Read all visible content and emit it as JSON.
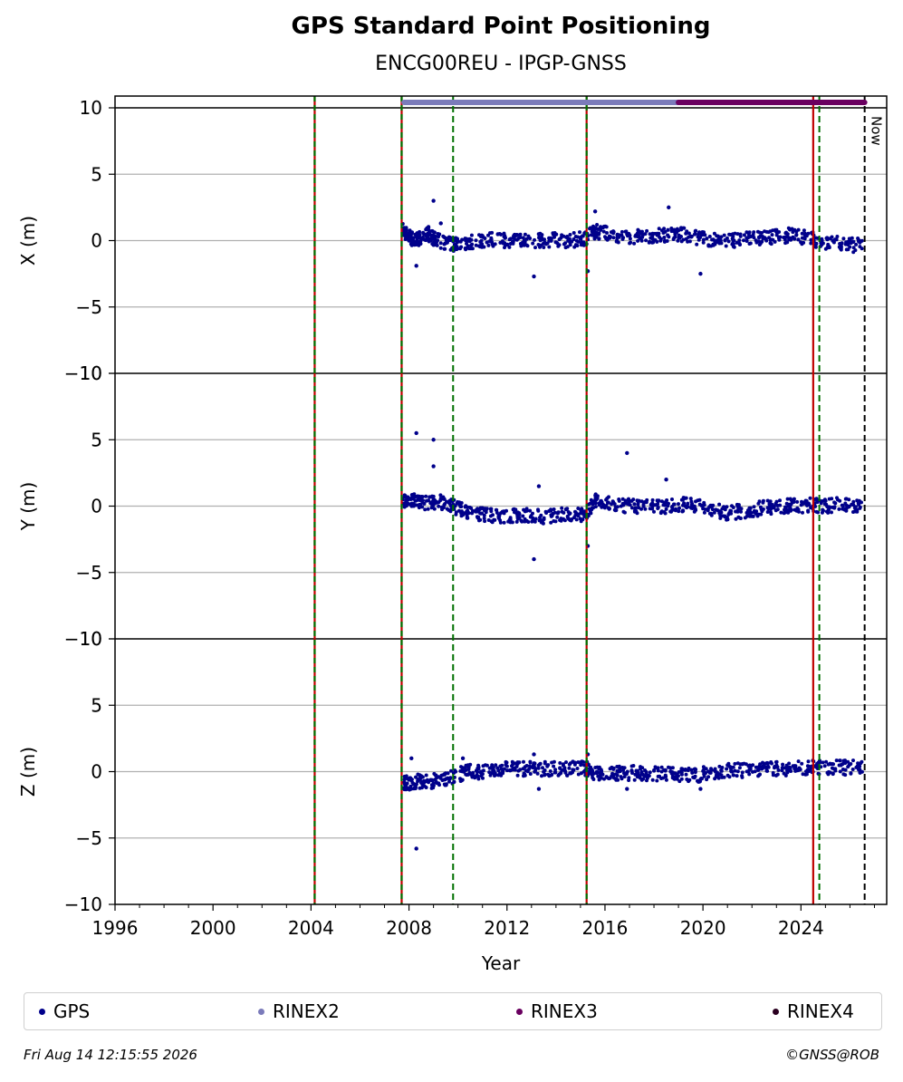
{
  "chart_data": {
    "type": "scatter",
    "title": "GPS Standard Point Positioning",
    "subtitle": "ENCG00REU - IPGP-GNSS",
    "xlabel": "Year",
    "xlim": [
      1996,
      2027.5
    ],
    "xticks": [
      1996,
      2000,
      2004,
      2008,
      2012,
      2016,
      2020,
      2024
    ],
    "grid": true,
    "panels": [
      {
        "ylabel": "X (m)",
        "ylim": [
          -10,
          10
        ],
        "yticks": [
          -10,
          -5,
          0,
          5,
          10
        ],
        "tick_labels": [
          "−10",
          "−5",
          "0",
          "5",
          "10"
        ],
        "series": [
          {
            "name": "GPS",
            "x": [
              2007.75,
              2007.9,
              2008.1,
              2008.3,
              2008.5,
              2008.8,
              2009.0,
              2009.3,
              2009.7,
              2010.0,
              2010.5,
              2011.0,
              2011.5,
              2012.0,
              2012.5,
              2013.0,
              2013.5,
              2014.0,
              2014.5,
              2015.0,
              2015.3,
              2015.6,
              2016.0,
              2016.5,
              2017.0,
              2017.5,
              2018.0,
              2018.5,
              2019.0,
              2019.5,
              2020.0,
              2020.5,
              2021.0,
              2021.5,
              2022.0,
              2022.5,
              2023.0,
              2023.5,
              2024.0,
              2024.5,
              2025.0,
              2025.5,
              2026.0,
              2026.5
            ],
            "y": [
              0.8,
              0.5,
              0.2,
              0.0,
              0.3,
              0.5,
              0.2,
              -0.1,
              -0.3,
              -0.2,
              -0.1,
              0.0,
              0.1,
              0.0,
              0.1,
              0.0,
              0.0,
              0.1,
              0.0,
              0.1,
              0.3,
              0.7,
              0.6,
              0.4,
              0.3,
              0.3,
              0.4,
              0.4,
              0.5,
              0.3,
              0.2,
              0.0,
              0.0,
              0.1,
              0.1,
              0.3,
              0.3,
              0.4,
              0.3,
              0.1,
              -0.2,
              -0.2,
              -0.3,
              -0.4
            ],
            "outliers_x": [
              2008.3,
              2009.0,
              2009.3,
              2013.1,
              2015.3,
              2015.6,
              2018.6,
              2019.9
            ],
            "outliers_y": [
              -1.9,
              3.0,
              1.3,
              -2.7,
              -2.3,
              2.2,
              2.5,
              -2.5
            ]
          }
        ]
      },
      {
        "ylabel": "Y (m)",
        "ylim": [
          -10,
          10
        ],
        "yticks": [
          -10,
          -5,
          0,
          5,
          10
        ],
        "tick_labels": [
          "−10",
          "−5",
          "0",
          "5",
          "10"
        ],
        "series": [
          {
            "name": "GPS",
            "x": [
              2007.75,
              2008.0,
              2008.3,
              2008.6,
              2009.0,
              2009.4,
              2009.8,
              2010.2,
              2010.6,
              2011.0,
              2011.5,
              2012.0,
              2012.5,
              2013.0,
              2013.5,
              2014.0,
              2014.5,
              2015.0,
              2015.3,
              2015.6,
              2016.0,
              2016.5,
              2017.0,
              2017.5,
              2018.0,
              2018.5,
              2019.0,
              2019.5,
              2020.0,
              2020.5,
              2021.0,
              2021.5,
              2022.0,
              2022.5,
              2023.0,
              2023.5,
              2024.0,
              2024.5,
              2025.0,
              2025.5,
              2026.0,
              2026.5
            ],
            "y": [
              0.5,
              0.3,
              0.4,
              0.2,
              0.3,
              0.3,
              0.0,
              -0.3,
              -0.5,
              -0.6,
              -0.7,
              -0.8,
              -0.7,
              -0.7,
              -0.8,
              -0.7,
              -0.7,
              -0.6,
              -0.5,
              0.5,
              0.2,
              0.0,
              0.0,
              -0.1,
              0.0,
              0.0,
              0.1,
              0.1,
              0.0,
              -0.3,
              -0.5,
              -0.4,
              -0.3,
              -0.1,
              0.0,
              0.0,
              0.0,
              0.1,
              0.0,
              0.1,
              0.1,
              0.0
            ],
            "outliers_x": [
              2008.3,
              2009.0,
              2009.0,
              2013.1,
              2013.3,
              2015.3,
              2016.9,
              2018.5
            ],
            "outliers_y": [
              5.5,
              5.0,
              3.0,
              -4.0,
              1.5,
              -3.0,
              4.0,
              2.0
            ]
          }
        ]
      },
      {
        "ylabel": "Z (m)",
        "ylim": [
          -10,
          10
        ],
        "yticks": [
          -10,
          -5,
          0,
          5,
          10
        ],
        "tick_labels": [
          "−10",
          "−5",
          "0",
          "5",
          "10"
        ],
        "series": [
          {
            "name": "GPS",
            "x": [
              2007.75,
              2008.0,
              2008.3,
              2008.6,
              2009.0,
              2009.4,
              2009.8,
              2010.2,
              2010.6,
              2011.0,
              2011.5,
              2012.0,
              2012.5,
              2013.0,
              2013.5,
              2014.0,
              2014.5,
              2015.0,
              2015.3,
              2015.6,
              2016.0,
              2016.5,
              2017.0,
              2017.5,
              2018.0,
              2018.5,
              2019.0,
              2019.5,
              2020.0,
              2020.5,
              2021.0,
              2021.5,
              2022.0,
              2022.5,
              2023.0,
              2023.5,
              2024.0,
              2024.5,
              2025.0,
              2025.5,
              2026.0,
              2026.5
            ],
            "y": [
              -0.8,
              -0.9,
              -0.7,
              -0.8,
              -0.7,
              -0.5,
              -0.4,
              -0.1,
              0.0,
              0.0,
              0.1,
              0.2,
              0.2,
              0.2,
              0.2,
              0.2,
              0.2,
              0.3,
              0.2,
              -0.2,
              -0.1,
              -0.1,
              -0.1,
              -0.1,
              -0.2,
              -0.2,
              -0.3,
              -0.3,
              -0.2,
              0.0,
              0.1,
              0.1,
              0.1,
              0.2,
              0.2,
              0.2,
              0.3,
              0.3,
              0.3,
              0.3,
              0.3,
              0.3
            ],
            "outliers_x": [
              2008.3,
              2008.1,
              2010.2,
              2013.1,
              2013.3,
              2015.3,
              2016.9,
              2019.9
            ],
            "outliers_y": [
              -5.8,
              1.0,
              1.0,
              1.3,
              -1.3,
              1.3,
              -1.3,
              -1.3
            ]
          }
        ]
      }
    ],
    "event_lines": [
      {
        "x": 2004.15,
        "style": "solid",
        "colors": [
          "#c00000",
          "#007000"
        ]
      },
      {
        "x": 2007.7,
        "style": "solid",
        "colors": [
          "#c00000",
          "#007000"
        ]
      },
      {
        "x": 2009.8,
        "style": "dashed",
        "colors": [
          "#007000"
        ]
      },
      {
        "x": 2015.25,
        "style": "solid",
        "colors": [
          "#c00000",
          "#007000"
        ]
      },
      {
        "x": 2024.5,
        "style": "solid",
        "colors": [
          "#c00000"
        ]
      },
      {
        "x": 2024.75,
        "style": "dashed",
        "colors": [
          "#007000"
        ]
      }
    ],
    "now_line": {
      "x": 2026.6,
      "label": "Now"
    },
    "rinex_bars": [
      {
        "name": "RINEX2",
        "start": 2007.8,
        "end": 2019.0,
        "color": "#7b7bba"
      },
      {
        "name": "RINEX3",
        "start": 2019.0,
        "end": 2026.6,
        "color": "#6a0060"
      }
    ],
    "legend": {
      "placement": "bottom",
      "entries": [
        {
          "label": "GPS",
          "color": "#00008b"
        },
        {
          "label": "RINEX2",
          "color": "#7b7bba"
        },
        {
          "label": "RINEX3",
          "color": "#6a0060"
        },
        {
          "label": "RINEX4",
          "color": "#2a0020"
        }
      ]
    },
    "colors": {
      "gps": "#00008b",
      "grid": "#b0b0b0"
    }
  },
  "footer": {
    "timestamp": "Fri Aug 14 12:15:55 2026",
    "credit": "©GNSS@ROB"
  }
}
